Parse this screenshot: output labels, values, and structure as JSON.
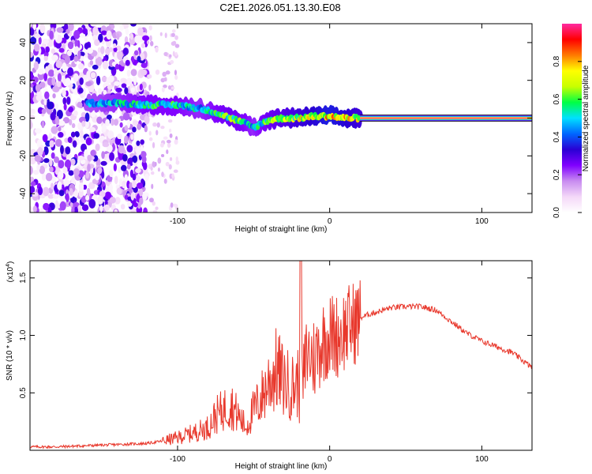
{
  "title": "C2E1.2026.051.13.30.E08",
  "colors": {
    "snr_line": "#e8382c",
    "frame": "#000000",
    "cbar_stops": [
      "#ffffff",
      "#f4d8f8",
      "#c88cf0",
      "#8000ff",
      "#2a00d4",
      "#0066ff",
      "#00e0ff",
      "#00ff44",
      "#c8ff00",
      "#ffff00",
      "#ff7a00",
      "#ff0000",
      "#ff2aa0"
    ]
  },
  "chart_data": [
    {
      "type": "heatmap",
      "title": "C2E1.2026.051.13.30.E08",
      "xlabel": "Height of straight line (km)",
      "ylabel": "Frequency (Hz)",
      "xlim": [
        -197,
        133
      ],
      "ylim": [
        -50,
        50
      ],
      "xticks": [
        -100,
        0,
        100
      ],
      "xtick_labels": [
        "-100",
        "0",
        "100"
      ],
      "yticks": [
        -40,
        -20,
        0,
        20,
        40
      ],
      "ytick_labels": [
        "-40",
        "-20",
        "0",
        "20",
        "40"
      ],
      "colorbar": {
        "label": "Normalized spectral amplitude",
        "range": [
          0.0,
          1.0
        ],
        "ticks": [
          0.0,
          0.2,
          0.4,
          0.6,
          0.8
        ],
        "tick_labels": [
          "0.0",
          "0.2",
          "0.4",
          "0.6",
          "0.8"
        ]
      },
      "features": {
        "noise_region_x": [
          -197,
          -120
        ],
        "noise_sparse_x": [
          -120,
          -100
        ],
        "ridge": {
          "x": [
            -160,
            -140,
            -120,
            -100,
            -85,
            -75,
            -65,
            -55,
            -50,
            -40,
            -30,
            -20,
            -10,
            0,
            10,
            20
          ],
          "freq": [
            8,
            8,
            7,
            7,
            5,
            3,
            0,
            -3,
            -5,
            -1,
            0,
            0,
            1,
            1,
            0,
            0
          ],
          "amplitude": [
            0.45,
            0.5,
            0.55,
            0.55,
            0.5,
            0.55,
            0.6,
            0.55,
            0.5,
            0.6,
            0.65,
            0.7,
            0.75,
            0.8,
            0.75,
            0.7
          ]
        },
        "line_band": {
          "x": [
            20,
            133
          ],
          "freq": 0,
          "amplitude": 1.0
        }
      }
    },
    {
      "type": "line",
      "xlabel": "Height of straight line (km)",
      "ylabel": "SNR (10 * v/v)",
      "y_multiplier": "(x10",
      "y_multiplier_exp": "4",
      "y_multiplier_close": ")",
      "xlim": [
        -197,
        133
      ],
      "ylim": [
        0,
        1.65
      ],
      "xticks": [
        -100,
        0,
        100
      ],
      "xtick_labels": [
        "-100",
        "0",
        "100"
      ],
      "yticks": [
        0.5,
        1.0,
        1.5
      ],
      "ytick_labels": [
        "0.5",
        "1.0",
        "1.5"
      ],
      "series": [
        {
          "name": "SNR",
          "x": [
            -197,
            -180,
            -160,
            -140,
            -120,
            -110,
            -100,
            -90,
            -80,
            -75,
            -70,
            -65,
            -60,
            -55,
            -50,
            -45,
            -40,
            -35,
            -30,
            -25,
            -20,
            -18,
            -15,
            -10,
            -5,
            0,
            5,
            10,
            15,
            20,
            25,
            30,
            40,
            50,
            60,
            70,
            80,
            90,
            100,
            110,
            120,
            130,
            133
          ],
          "y": [
            0.03,
            0.03,
            0.04,
            0.05,
            0.06,
            0.08,
            0.11,
            0.15,
            0.2,
            0.3,
            0.35,
            0.4,
            0.3,
            0.2,
            0.35,
            0.45,
            0.6,
            0.7,
            0.6,
            0.55,
            0.6,
            0.5,
            0.85,
            0.8,
            0.95,
            1.0,
            1.0,
            1.05,
            1.1,
            1.15,
            1.18,
            1.2,
            1.24,
            1.25,
            1.25,
            1.22,
            1.12,
            1.02,
            0.95,
            0.9,
            0.85,
            0.75,
            0.72
          ],
          "peak": {
            "x": -19,
            "y": 1.65
          }
        }
      ]
    }
  ]
}
